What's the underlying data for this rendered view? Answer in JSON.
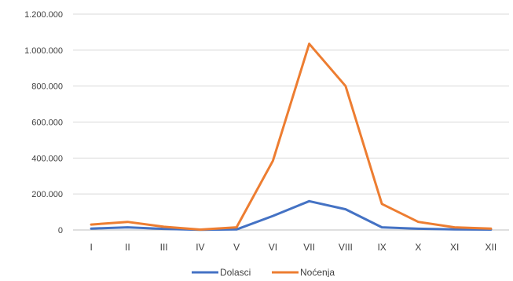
{
  "chart_data": {
    "type": "line",
    "categories": [
      "I",
      "II",
      "III",
      "IV",
      "V",
      "VI",
      "VII",
      "VIII",
      "IX",
      "X",
      "XI",
      "XII"
    ],
    "series": [
      {
        "name": "Dolasci",
        "color": "#4472C4",
        "values": [
          8000,
          15000,
          6000,
          1000,
          3000,
          78000,
          160000,
          115000,
          15000,
          7000,
          3000,
          2000
        ]
      },
      {
        "name": "Noćenja",
        "color": "#ED7D31",
        "values": [
          30000,
          45000,
          18000,
          2000,
          15000,
          385000,
          1035000,
          800000,
          145000,
          45000,
          15000,
          8000
        ]
      }
    ],
    "ylim": [
      0,
      1200000
    ],
    "y_ticks": [
      0,
      200000,
      400000,
      600000,
      800000,
      1000000,
      1200000
    ],
    "y_tick_labels": [
      "0",
      "200.000",
      "400.000",
      "600.000",
      "800.000",
      "1.000.000",
      "1.200.000"
    ],
    "grid": true,
    "legend_position": "bottom"
  }
}
